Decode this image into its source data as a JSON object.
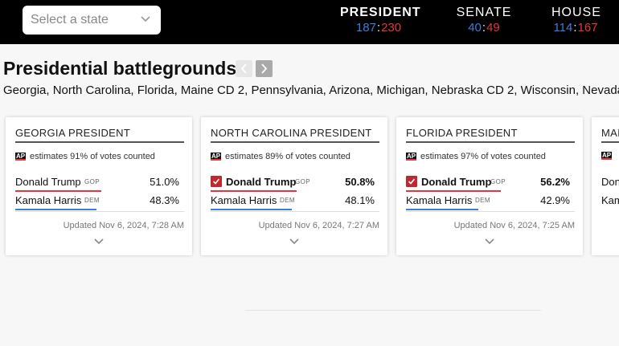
{
  "header": {
    "state_select": {
      "placeholder": "Select a state"
    },
    "races": [
      {
        "label": "PRESIDENT",
        "dem": "187",
        "rep": "230",
        "dem_color": "#3b7dd8",
        "rep_color": "#e8343a"
      },
      {
        "label": "SENATE",
        "dem": "40",
        "rep": "49"
      },
      {
        "label": "HOUSE",
        "dem": "114",
        "rep": "167"
      }
    ]
  },
  "main": {
    "title": "Presidential battlegrounds",
    "states_line": "Georgia, North Carolina, Florida, Maine CD 2, Pennsylvania, Arizona, Michigan, Nebraska CD 2, Wisconsin, Nevada",
    "cards": [
      {
        "title": "GEORGIA PRESIDENT",
        "estimate": "estimates 91% of votes counted",
        "candidates": [
          {
            "name": "Donald Trump",
            "party": "GOP",
            "pct": "51.0%",
            "winner": false,
            "share": 0.51,
            "color": "#e8343a"
          },
          {
            "name": "Kamala Harris",
            "party": "DEM",
            "pct": "48.3%",
            "winner": false,
            "share": 0.483,
            "color": "#3b7dd8"
          }
        ],
        "updated": "Updated Nov 6, 2024, 7:28 AM"
      },
      {
        "title": "NORTH CAROLINA PRESIDENT",
        "estimate": "estimates 89% of votes counted",
        "candidates": [
          {
            "name": "Donald Trump",
            "party": "GOP",
            "pct": "50.8%",
            "winner": true,
            "share": 0.508,
            "color": "#e8343a"
          },
          {
            "name": "Kamala Harris",
            "party": "DEM",
            "pct": "48.1%",
            "winner": false,
            "share": 0.481,
            "color": "#3b7dd8"
          }
        ],
        "updated": "Updated Nov 6, 2024, 7:27 AM"
      },
      {
        "title": "FLORIDA PRESIDENT",
        "estimate": "estimates 97% of votes counted",
        "candidates": [
          {
            "name": "Donald Trump",
            "party": "GOP",
            "pct": "56.2%",
            "winner": true,
            "share": 0.562,
            "color": "#e8343a"
          },
          {
            "name": "Kamala Harris",
            "party": "DEM",
            "pct": "42.9%",
            "winner": false,
            "share": 0.429,
            "color": "#3b7dd8"
          }
        ],
        "updated": "Updated Nov 6, 2024, 7:25 AM"
      }
    ],
    "partial_card": {
      "title": "MAI",
      "row1": "Don",
      "row2": "Kam"
    }
  }
}
